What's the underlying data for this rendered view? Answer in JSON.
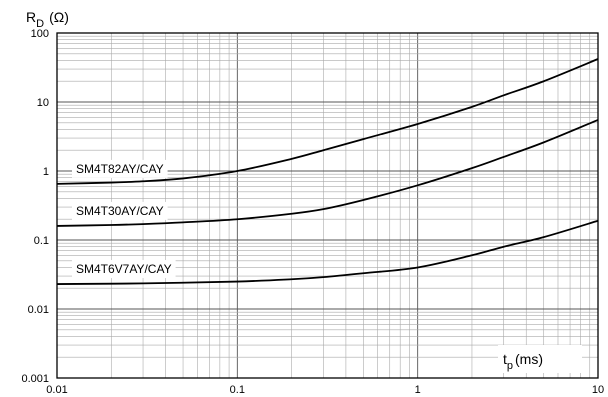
{
  "chart_data": {
    "type": "line",
    "title": "",
    "ylabel": {
      "main": "R",
      "sub": "D",
      "unit": "(Ω)"
    },
    "xlabel": {
      "main": "t",
      "sub": "p",
      "unit": "(ms)"
    },
    "x_scale": "log",
    "y_scale": "log",
    "xlim": [
      0.01,
      10
    ],
    "ylim": [
      0.001,
      100
    ],
    "grid": true,
    "x_ticks": [
      "0.01",
      "0.1",
      "1",
      "10"
    ],
    "y_ticks": [
      "100",
      "10",
      "1",
      "0.1",
      "0.01",
      "0.001"
    ],
    "series": [
      {
        "name": "SM4T82AY/CAY",
        "x": [
          0.01,
          0.02,
          0.03,
          0.05,
          0.1,
          0.2,
          0.3,
          0.5,
          1,
          2,
          3,
          5,
          10
        ],
        "y": [
          0.65,
          0.68,
          0.71,
          0.78,
          1.0,
          1.5,
          2.0,
          2.9,
          4.8,
          8.5,
          12.5,
          20,
          42
        ]
      },
      {
        "name": "SM4T30AY/CAY",
        "x": [
          0.01,
          0.02,
          0.03,
          0.05,
          0.1,
          0.2,
          0.3,
          0.5,
          1,
          2,
          3,
          5,
          10
        ],
        "y": [
          0.16,
          0.165,
          0.17,
          0.18,
          0.2,
          0.24,
          0.28,
          0.38,
          0.62,
          1.1,
          1.6,
          2.6,
          5.5
        ]
      },
      {
        "name": "SM4T6V7AY/CAY",
        "x": [
          0.01,
          0.03,
          0.1,
          0.2,
          0.3,
          0.5,
          1,
          2,
          3,
          5,
          10
        ],
        "y": [
          0.023,
          0.0235,
          0.025,
          0.027,
          0.029,
          0.033,
          0.04,
          0.06,
          0.08,
          0.11,
          0.19
        ]
      }
    ]
  }
}
